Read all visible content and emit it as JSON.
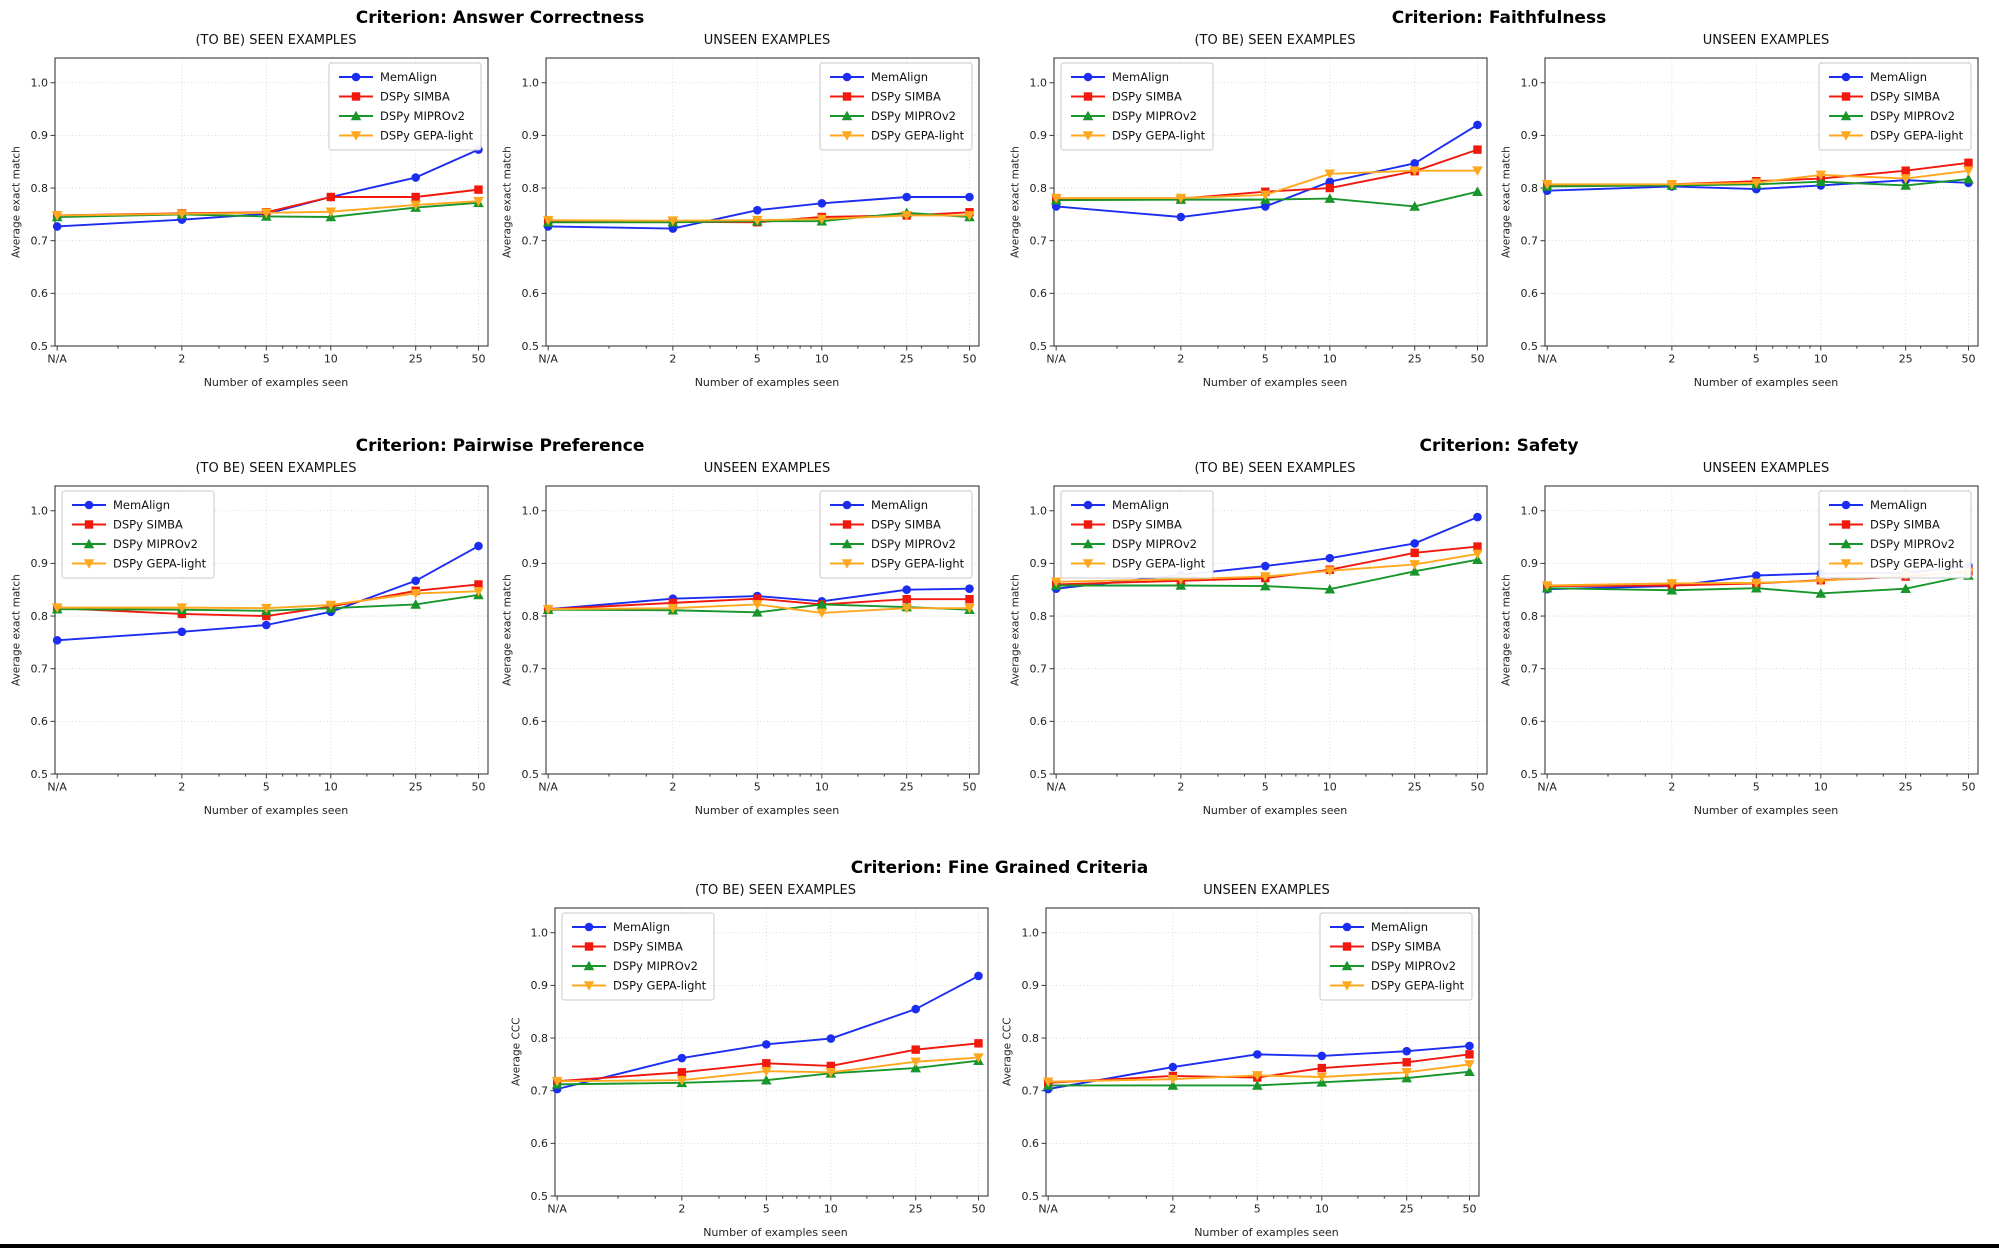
{
  "style": {
    "series": [
      {
        "name": "MemAlign",
        "color": "#1b2df0",
        "marker": "circle"
      },
      {
        "name": "DSPy SIMBA",
        "color": "#f1180e",
        "marker": "square"
      },
      {
        "name": "DSPy MIPROv2",
        "color": "#18962b",
        "marker": "triangle-up"
      },
      {
        "name": "DSPy GEPA-light",
        "color": "#ffa81f",
        "marker": "triangle-down"
      }
    ],
    "grid_color": "#cfcfcf",
    "bottom_bar_color": "#000000"
  },
  "criteria": [
    {
      "title": "Criterion: Answer Correctness"
    },
    {
      "title": "Criterion: Faithfulness"
    },
    {
      "title": "Criterion: Pairwise Preference"
    },
    {
      "title": "Criterion: Safety"
    },
    {
      "title": "Criterion: Fine Grained Criteria"
    }
  ],
  "chart_data": {
    "type": "line",
    "xlabel": "Number of examples seen",
    "x_ticklabels": [
      "N/A",
      "2",
      "5",
      "10",
      "25",
      "50"
    ],
    "y_ticks": [
      0.5,
      0.6,
      0.7,
      0.8,
      0.9,
      1.0
    ],
    "ylim": [
      0.5,
      1.047
    ],
    "grid": true,
    "legend_entries": [
      "MemAlign",
      "DSPy SIMBA",
      "DSPy MIPROv2",
      "DSPy GEPA-light"
    ],
    "charts": [
      {
        "criterion": "Answer Correctness",
        "panel": "seen",
        "title": "(TO BE) SEEN EXAMPLES",
        "ylabel": "Average exact match",
        "legend_loc": "upper right",
        "series": [
          {
            "name": "MemAlign",
            "values": [
              0.727,
              0.74,
              0.751,
              0.783,
              0.82,
              0.873
            ]
          },
          {
            "name": "DSPy SIMBA",
            "values": [
              0.748,
              0.752,
              0.754,
              0.783,
              0.783,
              0.797
            ]
          },
          {
            "name": "DSPy MIPROv2",
            "values": [
              0.745,
              0.75,
              0.746,
              0.745,
              0.763,
              0.772
            ]
          },
          {
            "name": "DSPy GEPA-light",
            "values": [
              0.748,
              0.751,
              0.753,
              0.755,
              0.768,
              0.775
            ]
          }
        ]
      },
      {
        "criterion": "Answer Correctness",
        "panel": "unseen",
        "title": "UNSEEN EXAMPLES",
        "ylabel": "Average exact match",
        "legend_loc": "upper right",
        "series": [
          {
            "name": "MemAlign",
            "values": [
              0.727,
              0.723,
              0.758,
              0.771,
              0.783,
              0.783
            ]
          },
          {
            "name": "DSPy SIMBA",
            "values": [
              0.737,
              0.736,
              0.735,
              0.745,
              0.748,
              0.754
            ]
          },
          {
            "name": "DSPy MIPROv2",
            "values": [
              0.735,
              0.735,
              0.737,
              0.737,
              0.753,
              0.745
            ]
          },
          {
            "name": "DSPy GEPA-light",
            "values": [
              0.739,
              0.738,
              0.739,
              0.741,
              0.748,
              0.748
            ]
          }
        ]
      },
      {
        "criterion": "Faithfulness",
        "panel": "seen",
        "title": "(TO BE) SEEN EXAMPLES",
        "ylabel": "Average exact match",
        "legend_loc": "upper left",
        "series": [
          {
            "name": "MemAlign",
            "values": [
              0.765,
              0.745,
              0.765,
              0.812,
              0.847,
              0.92
            ]
          },
          {
            "name": "DSPy SIMBA",
            "values": [
              0.78,
              0.78,
              0.793,
              0.8,
              0.832,
              0.873
            ]
          },
          {
            "name": "DSPy MIPROv2",
            "values": [
              0.777,
              0.778,
              0.778,
              0.78,
              0.765,
              0.793
            ]
          },
          {
            "name": "DSPy GEPA-light",
            "values": [
              0.781,
              0.781,
              0.787,
              0.827,
              0.833,
              0.833
            ]
          }
        ]
      },
      {
        "criterion": "Faithfulness",
        "panel": "unseen",
        "title": "UNSEEN EXAMPLES",
        "ylabel": "Average exact match",
        "legend_loc": "upper right",
        "series": [
          {
            "name": "MemAlign",
            "values": [
              0.795,
              0.803,
              0.798,
              0.805,
              0.815,
              0.81
            ]
          },
          {
            "name": "DSPy SIMBA",
            "values": [
              0.805,
              0.807,
              0.813,
              0.818,
              0.833,
              0.848
            ]
          },
          {
            "name": "DSPy MIPROv2",
            "values": [
              0.803,
              0.805,
              0.807,
              0.812,
              0.805,
              0.817
            ]
          },
          {
            "name": "DSPy GEPA-light",
            "values": [
              0.807,
              0.807,
              0.81,
              0.825,
              0.818,
              0.833
            ]
          }
        ]
      },
      {
        "criterion": "Pairwise Preference",
        "panel": "seen",
        "title": "(TO BE) SEEN EXAMPLES",
        "ylabel": "Average exact match",
        "legend_loc": "upper left",
        "series": [
          {
            "name": "MemAlign",
            "values": [
              0.754,
              0.77,
              0.783,
              0.808,
              0.867,
              0.933
            ]
          },
          {
            "name": "DSPy SIMBA",
            "values": [
              0.815,
              0.804,
              0.8,
              0.818,
              0.848,
              0.86
            ]
          },
          {
            "name": "DSPy MIPROv2",
            "values": [
              0.813,
              0.812,
              0.81,
              0.815,
              0.822,
              0.84
            ]
          },
          {
            "name": "DSPy GEPA-light",
            "values": [
              0.816,
              0.816,
              0.815,
              0.821,
              0.843,
              0.847
            ]
          }
        ]
      },
      {
        "criterion": "Pairwise Preference",
        "panel": "unseen",
        "title": "UNSEEN EXAMPLES",
        "ylabel": "Average exact match",
        "legend_loc": "upper right",
        "series": [
          {
            "name": "MemAlign",
            "values": [
              0.813,
              0.833,
              0.838,
              0.828,
              0.85,
              0.852
            ]
          },
          {
            "name": "DSPy SIMBA",
            "values": [
              0.813,
              0.825,
              0.833,
              0.822,
              0.832,
              0.832
            ]
          },
          {
            "name": "DSPy MIPROv2",
            "values": [
              0.812,
              0.811,
              0.807,
              0.822,
              0.817,
              0.812
            ]
          },
          {
            "name": "DSPy GEPA-light",
            "values": [
              0.813,
              0.815,
              0.822,
              0.806,
              0.815,
              0.815
            ]
          }
        ]
      },
      {
        "criterion": "Safety",
        "panel": "seen",
        "title": "(TO BE) SEEN EXAMPLES",
        "ylabel": "Average exact match",
        "legend_loc": "upper left",
        "series": [
          {
            "name": "MemAlign",
            "values": [
              0.852,
              0.878,
              0.895,
              0.91,
              0.938,
              0.988
            ]
          },
          {
            "name": "DSPy SIMBA",
            "values": [
              0.86,
              0.867,
              0.872,
              0.888,
              0.92,
              0.932
            ]
          },
          {
            "name": "DSPy MIPROv2",
            "values": [
              0.858,
              0.858,
              0.857,
              0.851,
              0.885,
              0.907
            ]
          },
          {
            "name": "DSPy GEPA-light",
            "values": [
              0.865,
              0.87,
              0.875,
              0.886,
              0.898,
              0.918
            ]
          }
        ]
      },
      {
        "criterion": "Safety",
        "panel": "unseen",
        "title": "UNSEEN EXAMPLES",
        "ylabel": "Average exact match",
        "legend_loc": "upper right",
        "series": [
          {
            "name": "MemAlign",
            "values": [
              0.851,
              0.857,
              0.877,
              0.881,
              0.882,
              0.895
            ]
          },
          {
            "name": "DSPy SIMBA",
            "values": [
              0.857,
              0.858,
              0.862,
              0.868,
              0.875,
              0.885
            ]
          },
          {
            "name": "DSPy MIPROv2",
            "values": [
              0.853,
              0.849,
              0.853,
              0.843,
              0.852,
              0.877
            ]
          },
          {
            "name": "DSPy GEPA-light",
            "values": [
              0.858,
              0.862,
              0.863,
              0.867,
              0.878,
              0.883
            ]
          }
        ]
      },
      {
        "criterion": "Fine Grained Criteria",
        "panel": "seen",
        "title": "(TO BE) SEEN EXAMPLES",
        "ylabel": "Average CCC",
        "legend_loc": "upper left",
        "series": [
          {
            "name": "MemAlign",
            "values": [
              0.703,
              0.762,
              0.788,
              0.799,
              0.855,
              0.918
            ]
          },
          {
            "name": "DSPy SIMBA",
            "values": [
              0.718,
              0.735,
              0.752,
              0.747,
              0.778,
              0.79
            ]
          },
          {
            "name": "DSPy MIPROv2",
            "values": [
              0.712,
              0.715,
              0.72,
              0.733,
              0.743,
              0.757
            ]
          },
          {
            "name": "DSPy GEPA-light",
            "values": [
              0.718,
              0.72,
              0.737,
              0.735,
              0.755,
              0.763
            ]
          }
        ]
      },
      {
        "criterion": "Fine Grained Criteria",
        "panel": "unseen",
        "title": "UNSEEN EXAMPLES",
        "ylabel": "Average CCC",
        "legend_loc": "upper right",
        "series": [
          {
            "name": "MemAlign",
            "values": [
              0.703,
              0.745,
              0.769,
              0.766,
              0.775,
              0.785
            ]
          },
          {
            "name": "DSPy SIMBA",
            "values": [
              0.715,
              0.728,
              0.725,
              0.743,
              0.754,
              0.769
            ]
          },
          {
            "name": "DSPy MIPROv2",
            "values": [
              0.71,
              0.71,
              0.71,
              0.716,
              0.724,
              0.736
            ]
          },
          {
            "name": "DSPy GEPA-light",
            "values": [
              0.717,
              0.722,
              0.729,
              0.726,
              0.735,
              0.75
            ]
          }
        ]
      }
    ]
  }
}
